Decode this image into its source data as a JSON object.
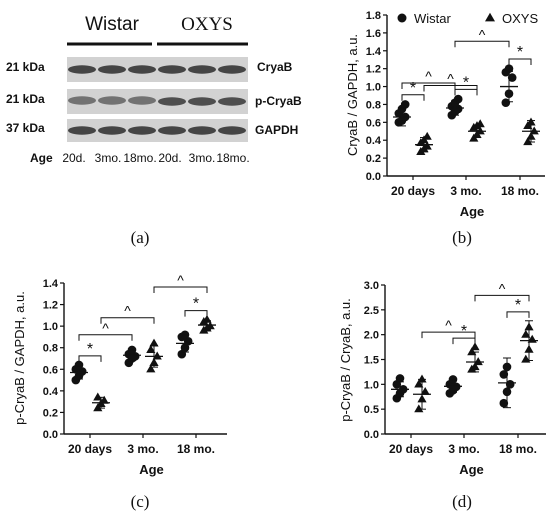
{
  "blot": {
    "groups": [
      "Wistar",
      "OXYS"
    ],
    "proteins": [
      {
        "mw": "21 kDa",
        "name": "CryaB"
      },
      {
        "mw": "21 kDa",
        "name": "p-CryaB"
      },
      {
        "mw": "37 kDa",
        "name": "GAPDH"
      }
    ],
    "age_label": "Age",
    "lane_labels": [
      "20d.",
      "3mo.",
      "18mo.",
      "20d.",
      "3mo.",
      "18mo."
    ]
  },
  "panel_labels": [
    "(a)",
    "(b)",
    "(c)",
    "(d)"
  ],
  "chart_data": [
    {
      "type": "scatter",
      "panel": "(b)",
      "categories": [
        "20 days",
        "3 mo.",
        "18 mo."
      ],
      "xlabel": "Age",
      "ylabel": "CryaB / GAPDH, a.u.",
      "ylim": [
        0,
        1.8
      ],
      "yticks": [
        0,
        0.2,
        0.4,
        0.6,
        0.8,
        1.0,
        1.2,
        1.4,
        1.6,
        1.8
      ],
      "legend": {
        "placement": "top",
        "entries": [
          "Wistar",
          "OXYS"
        ]
      },
      "series": [
        {
          "name": "Wistar",
          "marker": "circle",
          "points": [
            [
              0.6,
              0.62,
              0.66,
              0.7,
              0.75,
              0.8
            ],
            [
              0.68,
              0.72,
              0.75,
              0.78,
              0.82,
              0.86
            ],
            [
              0.82,
              0.92,
              1.1,
              1.16,
              1.2
            ]
          ],
          "mean": [
            0.66,
            0.76,
            1.0
          ],
          "sd": [
            0.1,
            0.08,
            0.17
          ]
        },
        {
          "name": "OXYS",
          "marker": "triangle",
          "points": [
            [
              0.27,
              0.3,
              0.33,
              0.37,
              0.4,
              0.44
            ],
            [
              0.42,
              0.46,
              0.5,
              0.54,
              0.56,
              0.58
            ],
            [
              0.38,
              0.44,
              0.5,
              0.56,
              0.6
            ]
          ],
          "mean": [
            0.35,
            0.5,
            0.5
          ],
          "sd": [
            0.08,
            0.07,
            0.12
          ]
        }
      ],
      "annotations": [
        {
          "text": "*",
          "from": [
            0,
            0
          ],
          "to": [
            0,
            1
          ]
        },
        {
          "text": "*",
          "from": [
            1,
            0
          ],
          "to": [
            1,
            1
          ]
        },
        {
          "text": "*",
          "from": [
            2,
            0
          ],
          "to": [
            2,
            1
          ]
        },
        {
          "text": "^",
          "from": [
            0,
            0
          ],
          "to": [
            1,
            0
          ]
        },
        {
          "text": "^",
          "from": [
            1,
            0
          ],
          "to": [
            2,
            0
          ]
        },
        {
          "text": "^",
          "from": [
            0,
            1
          ],
          "to": [
            1,
            1
          ]
        }
      ]
    },
    {
      "type": "scatter",
      "panel": "(c)",
      "categories": [
        "20 days",
        "3 mo.",
        "18 mo."
      ],
      "xlabel": "Age",
      "ylabel": "p-CryaB / GAPDH, a.u.",
      "ylim": [
        0,
        1.4
      ],
      "yticks": [
        0,
        0.2,
        0.4,
        0.6,
        0.8,
        1.0,
        1.2,
        1.4
      ],
      "series": [
        {
          "name": "Wistar",
          "marker": "circle",
          "points": [
            [
              0.5,
              0.54,
              0.58,
              0.6,
              0.64
            ],
            [
              0.66,
              0.7,
              0.72,
              0.74,
              0.78
            ],
            [
              0.74,
              0.8,
              0.86,
              0.9,
              0.92
            ]
          ],
          "mean": [
            0.57,
            0.73,
            0.84
          ],
          "sd": [
            0.06,
            0.05,
            0.08
          ]
        },
        {
          "name": "OXYS",
          "marker": "triangle",
          "points": [
            [
              0.24,
              0.28,
              0.31,
              0.34
            ],
            [
              0.6,
              0.66,
              0.72,
              0.78,
              0.84
            ],
            [
              0.96,
              0.98,
              1.0,
              1.04,
              1.06
            ]
          ],
          "mean": [
            0.29,
            0.72,
            1.01
          ],
          "sd": [
            0.05,
            0.1,
            0.04
          ]
        }
      ],
      "annotations": [
        {
          "text": "*",
          "from": [
            0,
            0
          ],
          "to": [
            0,
            1
          ]
        },
        {
          "text": "*",
          "from": [
            2,
            0
          ],
          "to": [
            2,
            1
          ]
        },
        {
          "text": "^",
          "from": [
            0,
            0
          ],
          "to": [
            1,
            0
          ]
        },
        {
          "text": "^",
          "from": [
            0,
            1
          ],
          "to": [
            1,
            1
          ]
        },
        {
          "text": "^",
          "from": [
            1,
            1
          ],
          "to": [
            2,
            1
          ]
        }
      ]
    },
    {
      "type": "scatter",
      "panel": "(d)",
      "categories": [
        "20 days",
        "3 mo.",
        "18 mo."
      ],
      "xlabel": "Age",
      "ylabel": "p-CryaB / CryaB, a.u.",
      "ylim": [
        0,
        3.0
      ],
      "yticks": [
        0,
        0.5,
        1.0,
        1.5,
        2.0,
        2.5,
        3.0
      ],
      "series": [
        {
          "name": "Wistar",
          "marker": "circle",
          "points": [
            [
              0.72,
              0.82,
              0.9,
              1.0,
              1.12
            ],
            [
              0.82,
              0.88,
              0.95,
              1.0,
              1.1
            ],
            [
              0.62,
              0.85,
              1.0,
              1.2,
              1.35
            ]
          ],
          "mean": [
            0.9,
            0.96,
            1.03
          ],
          "sd": [
            0.15,
            0.12,
            0.5
          ]
        },
        {
          "name": "OXYS",
          "marker": "triangle",
          "points": [
            [
              0.5,
              0.7,
              0.85,
              1.0,
              1.1
            ],
            [
              1.3,
              1.35,
              1.45,
              1.65,
              1.75
            ],
            [
              1.5,
              1.7,
              1.9,
              2.0,
              2.15
            ]
          ],
          "mean": [
            0.8,
            1.45,
            1.88
          ],
          "sd": [
            0.3,
            0.2,
            0.4
          ]
        }
      ],
      "annotations": [
        {
          "text": "*",
          "from": [
            1,
            0
          ],
          "to": [
            1,
            1
          ]
        },
        {
          "text": "*",
          "from": [
            2,
            0
          ],
          "to": [
            2,
            1
          ]
        },
        {
          "text": "^",
          "from": [
            0,
            1
          ],
          "to": [
            1,
            1
          ]
        },
        {
          "text": "^",
          "from": [
            1,
            1
          ],
          "to": [
            2,
            1
          ]
        }
      ]
    }
  ]
}
